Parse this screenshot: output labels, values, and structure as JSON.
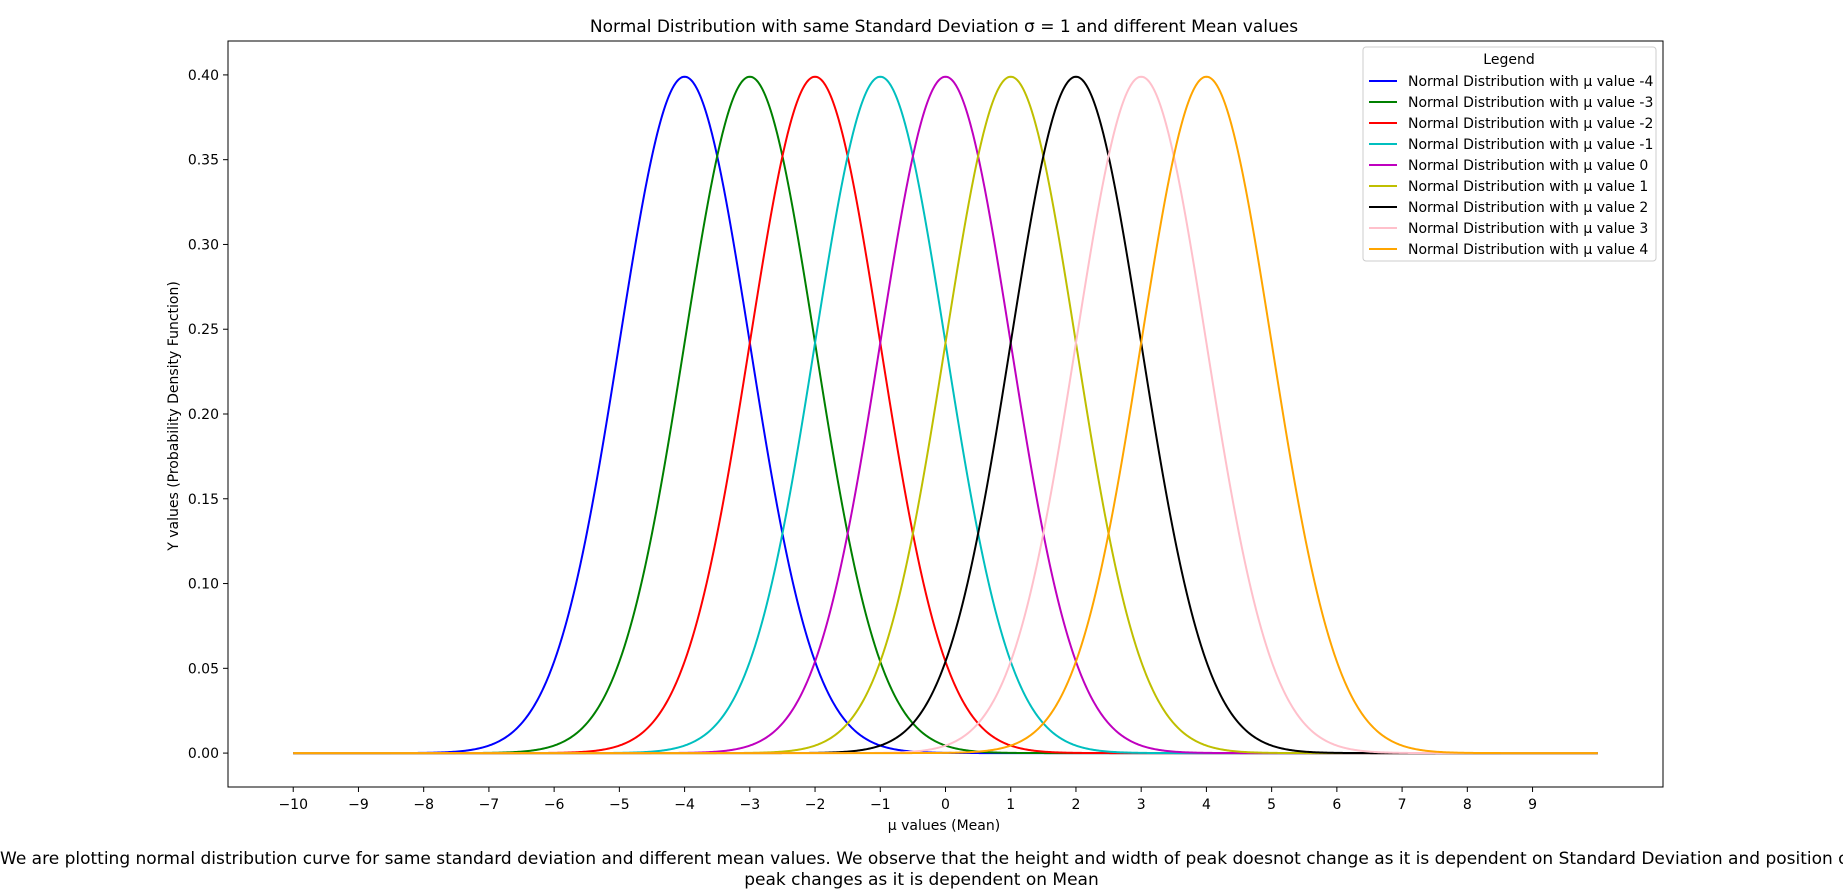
{
  "chart_data": {
    "type": "line",
    "title": "Normal Distribution with same Standard Deviation σ = 1 and different Mean values",
    "xlabel": "μ values (Mean)",
    "ylabel": "Y values (Probability Density Function)",
    "xlim": [
      -11.0,
      11.0
    ],
    "ylim": [
      -0.02,
      0.42
    ],
    "x_range": [
      -10,
      10
    ],
    "sigma": 1,
    "x_ticks": [
      -10,
      -9,
      -8,
      -7,
      -6,
      -5,
      -4,
      -3,
      -2,
      -1,
      0,
      1,
      2,
      3,
      4,
      5,
      6,
      7,
      8,
      9
    ],
    "x_tick_labels": [
      "−10",
      "−9",
      "−8",
      "−7",
      "−6",
      "−5",
      "−4",
      "−3",
      "−2",
      "−1",
      "0",
      "1",
      "2",
      "3",
      "4",
      "5",
      "6",
      "7",
      "8",
      "9"
    ],
    "y_ticks": [
      0.0,
      0.05,
      0.1,
      0.15,
      0.2,
      0.25,
      0.3,
      0.35,
      0.4
    ],
    "y_tick_labels": [
      "0.00",
      "0.05",
      "0.10",
      "0.15",
      "0.20",
      "0.25",
      "0.30",
      "0.35",
      "0.40"
    ],
    "grid": false,
    "legend": {
      "title": "Legend",
      "position": "top-right"
    },
    "series": [
      {
        "name": "Normal Distribution with μ value -4",
        "mu": -4,
        "peak": 0.399,
        "color": "#0000ff"
      },
      {
        "name": "Normal Distribution with μ value -3",
        "mu": -3,
        "peak": 0.399,
        "color": "#008000"
      },
      {
        "name": "Normal Distribution with μ value -2",
        "mu": -2,
        "peak": 0.399,
        "color": "#ff0000"
      },
      {
        "name": "Normal Distribution with μ value -1",
        "mu": -1,
        "peak": 0.399,
        "color": "#00bfbf"
      },
      {
        "name": "Normal Distribution with μ value 0",
        "mu": 0,
        "peak": 0.399,
        "color": "#bf00bf"
      },
      {
        "name": "Normal Distribution with μ value 1",
        "mu": 1,
        "peak": 0.399,
        "color": "#bfbf00"
      },
      {
        "name": "Normal Distribution with μ value 2",
        "mu": 2,
        "peak": 0.399,
        "color": "#000000"
      },
      {
        "name": "Normal Distribution with μ value 3",
        "mu": 3,
        "peak": 0.399,
        "color": "#ffc0cb"
      },
      {
        "name": "Normal Distribution with μ value 4",
        "mu": 4,
        "peak": 0.399,
        "color": "#ffa500"
      }
    ]
  },
  "caption": {
    "line1": "We are plotting normal distribution curve for same standard deviation and different mean values. We observe that the height and width of peak doesnot change as it is dependent on Standard Deviation and position of",
    "line2": "peak changes as it is dependent on Mean"
  }
}
